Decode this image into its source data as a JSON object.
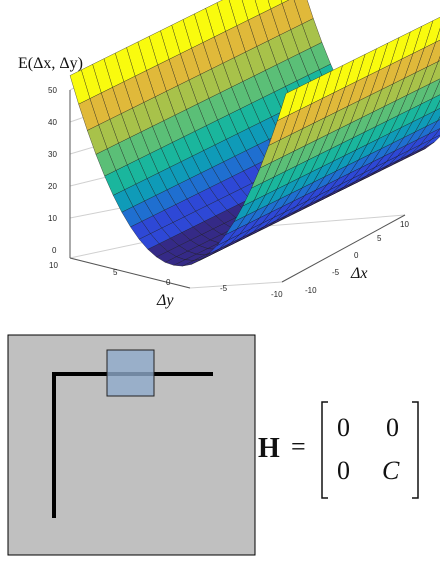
{
  "surface_plot": {
    "z_label": "E(Δx, Δy)",
    "x_label": "Δx",
    "y_label": "Δy",
    "z_ticks": [
      "50",
      "40",
      "30",
      "20",
      "10",
      "0"
    ],
    "dy_ticks": [
      "10",
      "5",
      "0",
      "-5",
      "-10"
    ],
    "dx_ticks": [
      "-10",
      "-5",
      "0",
      "5",
      "10"
    ],
    "colormap": [
      "#352a87",
      "#2e48d6",
      "#1f6fd0",
      "#0f9bb8",
      "#1ab69d",
      "#5bbf77",
      "#a8c24a",
      "#e0b93a",
      "#f9d92a",
      "#f9fb0e"
    ],
    "surface": "E = C·Δy², flat along Δx"
  },
  "edge_diagram": {
    "background_color": "#c0c0c0",
    "edge_color": "#000000",
    "window_color": "#8eaacb"
  },
  "matrix": {
    "symbol": "H",
    "equals": "=",
    "entries": [
      [
        "0",
        "0"
      ],
      [
        "0",
        "C"
      ]
    ]
  }
}
